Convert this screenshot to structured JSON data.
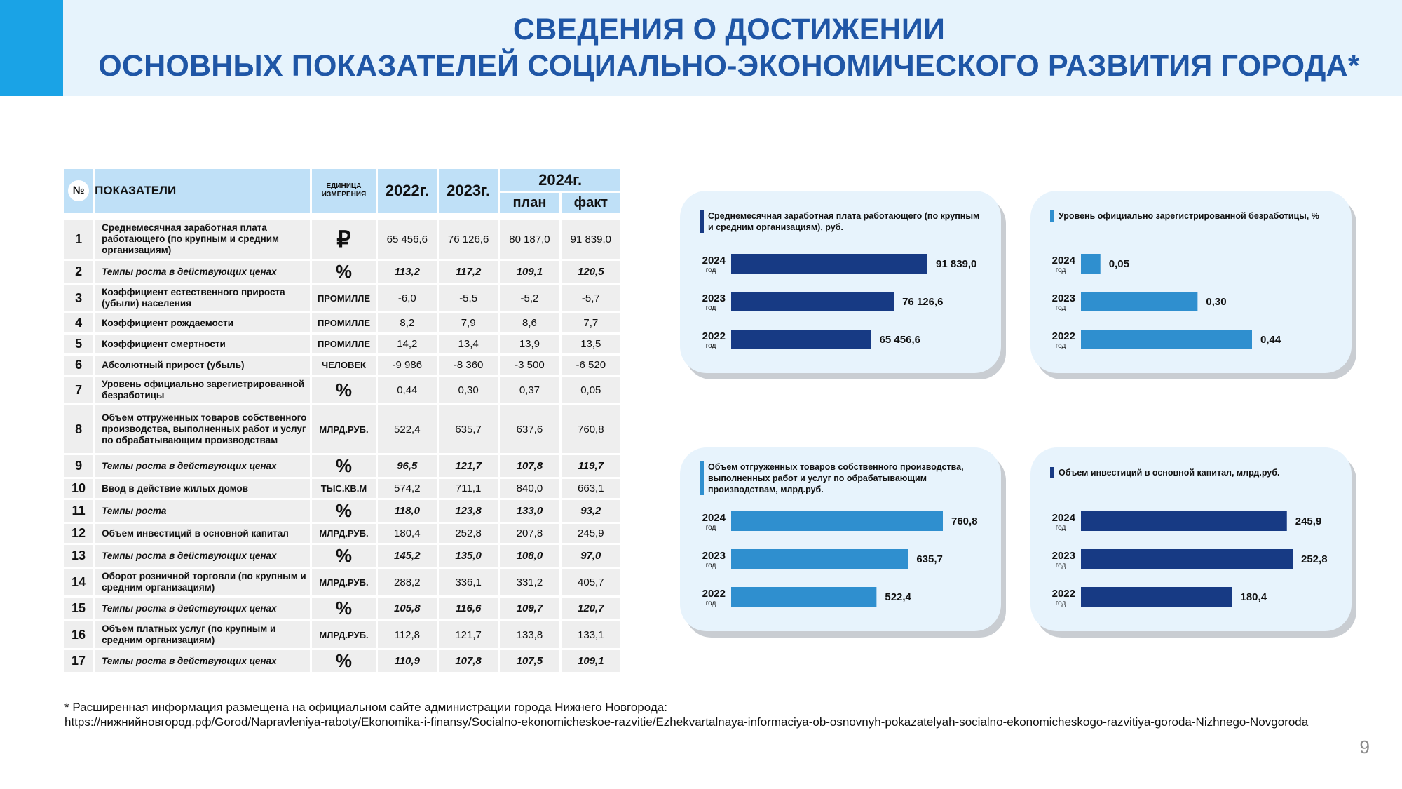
{
  "title": {
    "line1": "СВЕДЕНИЯ О ДОСТИЖЕНИИ",
    "line2": "ОСНОВНЫХ ПОКАЗАТЕЛЕЙ СОЦИАЛЬНО-ЭКОНОМИЧЕСКОГО РАЗВИТИЯ ГОРОДА*"
  },
  "table": {
    "headers": {
      "num": "№",
      "name": "ПОКАЗАТЕЛИ",
      "unit": "ЕДИНИЦА ИЗМЕРЕНИЯ",
      "y2022": "2022г.",
      "y2023": "2023г.",
      "y2024": "2024г.",
      "plan": "план",
      "fact": "факт"
    },
    "rows": [
      {
        "n": "1",
        "name": "Среднемесячная  заработная плата работающего (по крупным и средним организациям)",
        "unit": "₽",
        "v2022": "65 456,6",
        "v2023": "76 126,6",
        "plan": "80 187,0",
        "fact": "91 839,0"
      },
      {
        "n": "2",
        "name": "Темпы роста в действующих ценах",
        "unit": "%",
        "v2022": "113,2",
        "v2023": "117,2",
        "plan": "109,1",
        "fact": "120,5"
      },
      {
        "n": "3",
        "name": "Коэффициент естественного прироста (убыли) населения",
        "unit": "ПРОМИЛЛЕ",
        "v2022": "-6,0",
        "v2023": "-5,5",
        "plan": "-5,2",
        "fact": "-5,7"
      },
      {
        "n": "4",
        "name": "Коэффициент рождаемости",
        "unit": "ПРОМИЛЛЕ",
        "v2022": "8,2",
        "v2023": "7,9",
        "plan": "8,6",
        "fact": "7,7"
      },
      {
        "n": "5",
        "name": "Коэффициент смертности",
        "unit": "ПРОМИЛЛЕ",
        "v2022": "14,2",
        "v2023": "13,4",
        "plan": "13,9",
        "fact": "13,5"
      },
      {
        "n": "6",
        "name": "Абсолютный прирост (убыль)",
        "unit": "ЧЕЛОВЕК",
        "v2022": "-9 986",
        "v2023": "-8 360",
        "plan": "-3 500",
        "fact": "-6 520"
      },
      {
        "n": "7",
        "name": "Уровень официально зарегистрированной безработицы",
        "unit": "%",
        "v2022": "0,44",
        "v2023": "0,30",
        "plan": "0,37",
        "fact": "0,05"
      },
      {
        "n": "8",
        "name": "Объем отгруженных товаров собственного производства, выполненных работ и услуг по обрабатывающим производствам",
        "unit": "МЛРД.РУБ.",
        "v2022": "522,4",
        "v2023": "635,7",
        "plan": "637,6",
        "fact": "760,8"
      },
      {
        "n": "9",
        "name": "Темпы роста в действующих ценах",
        "unit": "%",
        "v2022": "96,5",
        "v2023": "121,7",
        "plan": "107,8",
        "fact": "119,7"
      },
      {
        "n": "10",
        "name": "Ввод в действие жилых домов",
        "unit": "ТЫС.КВ.М",
        "v2022": "574,2",
        "v2023": "711,1",
        "plan": "840,0",
        "fact": "663,1"
      },
      {
        "n": "11",
        "name": "Темпы роста",
        "unit": "%",
        "v2022": "118,0",
        "v2023": "123,8",
        "plan": "133,0",
        "fact": "93,2"
      },
      {
        "n": "12",
        "name": "Объем инвестиций в основной капитал",
        "unit": "МЛРД.РУБ.",
        "v2022": "180,4",
        "v2023": "252,8",
        "plan": "207,8",
        "fact": "245,9"
      },
      {
        "n": "13",
        "name": "Темпы роста в действующих ценах",
        "unit": "%",
        "v2022": "145,2",
        "v2023": "135,0",
        "plan": "108,0",
        "fact": "97,0"
      },
      {
        "n": "14",
        "name": "Оборот розничной торговли (по крупным и средним организациям)",
        "unit": "МЛРД.РУБ.",
        "v2022": "288,2",
        "v2023": "336,1",
        "plan": "331,2",
        "fact": "405,7"
      },
      {
        "n": "15",
        "name": "Темпы роста в действующих ценах",
        "unit": "%",
        "v2022": "105,8",
        "v2023": "116,6",
        "plan": "109,7",
        "fact": "120,7"
      },
      {
        "n": "16",
        "name": "Объем платных услуг (по крупным и средним организациям)",
        "unit": "МЛРД.РУБ.",
        "v2022": "112,8",
        "v2023": "121,7",
        "plan": "133,8",
        "fact": "133,1"
      },
      {
        "n": "17",
        "name": "Темпы роста в действующих ценах",
        "unit": "%",
        "v2022": "110,9",
        "v2023": "107,8",
        "plan": "107,5",
        "fact": "109,1"
      }
    ]
  },
  "chart_data": [
    {
      "type": "bar",
      "title": "Среднемесячная заработная плата работающего (по крупным и средним организациям), руб.",
      "categories": [
        "2024",
        "2023",
        "2022"
      ],
      "category_suffix": "год",
      "values": [
        91839.0,
        76126.6,
        65456.6
      ],
      "value_labels": [
        "91 839,0",
        "76 126,6",
        "65 456,6"
      ],
      "color": "#173a84",
      "xlim": [
        0,
        91839.0
      ]
    },
    {
      "type": "bar",
      "title": "Уровень официально зарегистрированной безработицы, %",
      "categories": [
        "2024",
        "2023",
        "2022"
      ],
      "category_suffix": "год",
      "values": [
        0.05,
        0.3,
        0.44
      ],
      "value_labels": [
        "0,05",
        "0,30",
        "0,44"
      ],
      "color": "#2f8fcf",
      "xlim": [
        0,
        0.44
      ]
    },
    {
      "type": "bar",
      "title": "Объем отгруженных товаров собственного производства, выполненных работ и услуг по обрабатывающим производствам, млрд.руб.",
      "categories": [
        "2024",
        "2023",
        "2022"
      ],
      "category_suffix": "год",
      "values": [
        760.8,
        635.7,
        522.4
      ],
      "value_labels": [
        "760,8",
        "635,7",
        "522,4"
      ],
      "color": "#2f8fcf",
      "xlim": [
        0,
        760.8
      ]
    },
    {
      "type": "bar",
      "title": "Объем инвестиций в основной капитал, млрд.руб.",
      "categories": [
        "2024",
        "2023",
        "2022"
      ],
      "category_suffix": "год",
      "values": [
        245.9,
        252.8,
        180.4
      ],
      "value_labels": [
        "245,9",
        "252,8",
        "180,4"
      ],
      "color": "#173a84",
      "xlim": [
        0,
        252.8
      ]
    }
  ],
  "footnote": {
    "text": "* Расширенная информация размещена на официальном сайте администрации города Нижнего Новгорода:",
    "link": "https://нижнийновгород.рф/Gorod/Napravleniya-raboty/Ekonomika-i-finansy/Socialno-ekonomicheskoe-razvitie/Ezhekvartalnaya-informaciya-ob-osnovnyh-pokazatelyah-socialno-ekonomicheskogo-razvitiya-goroda-Nizhnego-Novgoroda"
  },
  "page_number": "9"
}
